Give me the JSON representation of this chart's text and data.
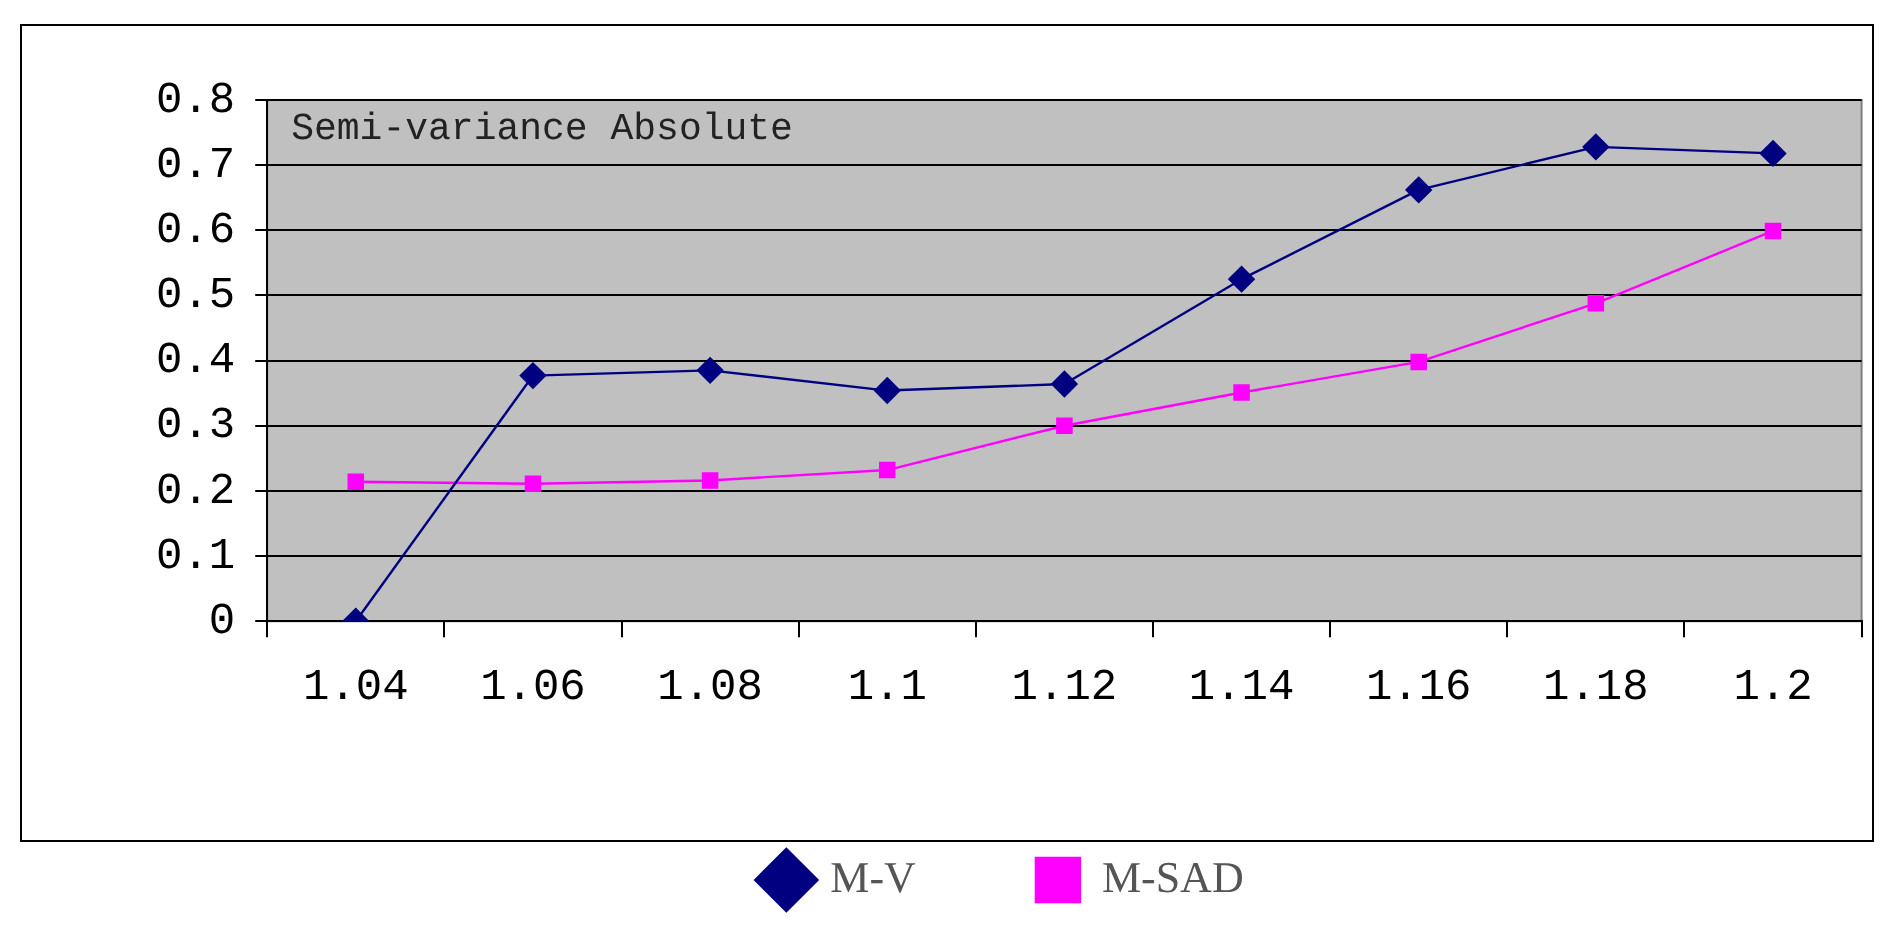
{
  "chart_data": {
    "type": "line",
    "annotations": [
      "Semi-variance Absolute"
    ],
    "categories": [
      "1.04",
      "1.06",
      "1.08",
      "1.1",
      "1.12",
      "1.14",
      "1.16",
      "1.18",
      "1.2"
    ],
    "series": [
      {
        "name": "M-V",
        "color": "#000080",
        "marker": "diamond",
        "values": [
          0,
          0.377,
          0.385,
          0.354,
          0.364,
          0.525,
          0.662,
          0.728,
          0.718
        ]
      },
      {
        "name": "M-SAD",
        "color": "#ff00ff",
        "marker": "square",
        "values": [
          0.214,
          0.211,
          0.216,
          0.232,
          0.3,
          0.351,
          0.398,
          0.488,
          0.599
        ]
      }
    ],
    "ylim": [
      0,
      0.8
    ],
    "yticks": [
      0,
      0.1,
      0.2,
      0.3,
      0.4,
      0.5,
      0.6,
      0.7,
      0.8
    ],
    "grid": "y",
    "legend": "bottom",
    "line_style": "solid"
  }
}
